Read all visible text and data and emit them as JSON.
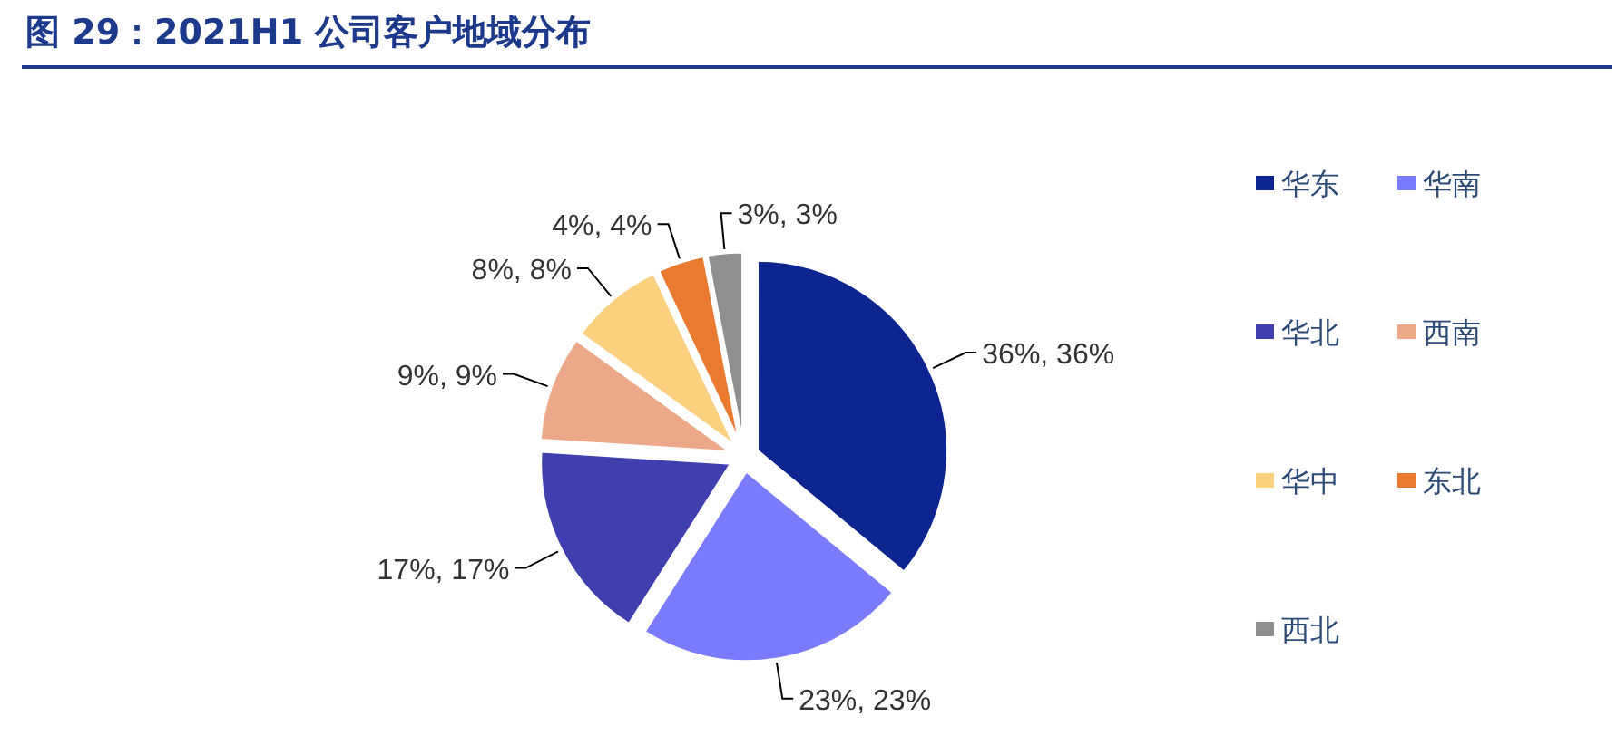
{
  "chart_data": {
    "type": "pie",
    "title": "图 29：2021H1 公司客户地域分布",
    "categories": [
      "华东",
      "华南",
      "华北",
      "西南",
      "华中",
      "东北",
      "西北"
    ],
    "values": [
      36,
      23,
      17,
      9,
      8,
      4,
      3
    ],
    "colors": [
      "#0d2590",
      "#7b7bff",
      "#3f3fb0",
      "#eda88a",
      "#fbd17f",
      "#ea7a30",
      "#8f8f8f"
    ],
    "value_labels": [
      "36%, 36%",
      "23%, 23%",
      "17%, 17%",
      "9%, 9%",
      "8%, 8%",
      "4%, 4%",
      "3%, 3%"
    ],
    "legend": "right"
  }
}
